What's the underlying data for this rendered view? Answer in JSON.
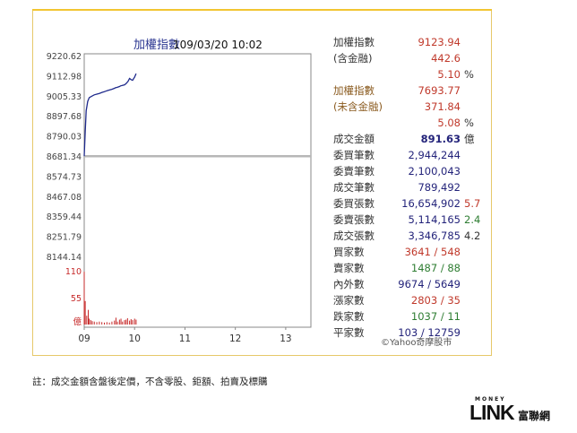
{
  "chart_data": {
    "type": "line",
    "title": "加權指數",
    "datetime": "109/03/20 10:02",
    "y_ticks": [
      "9220.62",
      "9112.98",
      "9005.33",
      "8897.68",
      "8790.03",
      "8681.34",
      "8574.73",
      "8467.08",
      "8359.44",
      "8251.79",
      "8144.14"
    ],
    "ylim": [
      8144.14,
      9220.62
    ],
    "reference": 8681.34,
    "x_ticks": [
      "09",
      "10",
      "11",
      "12",
      "13"
    ],
    "series": [
      {
        "name": "加權指數",
        "x": [
          9.0,
          9.02,
          9.04,
          9.07,
          9.1,
          9.15,
          9.2,
          9.25,
          9.3,
          9.35,
          9.4,
          9.45,
          9.5,
          9.55,
          9.6,
          9.62,
          9.65,
          9.7,
          9.72,
          9.75,
          9.8,
          9.83,
          9.87,
          9.9,
          9.93,
          9.96,
          10.0,
          10.03
        ],
        "values": [
          8681.34,
          8810,
          8925,
          8975,
          8995,
          9003,
          9010,
          9014,
          9018,
          9023,
          9027,
          9032,
          9036,
          9040,
          9045,
          9048,
          9050,
          9055,
          9058,
          9060,
          9064,
          9070,
          9082,
          9098,
          9092,
          9088,
          9105,
          9123.94
        ]
      }
    ],
    "volume": {
      "unit": "億",
      "ticks": [
        "110",
        "55"
      ],
      "ymax": 110,
      "x": [
        9.0,
        9.02,
        9.05,
        9.08,
        9.1,
        9.13,
        9.16,
        9.2,
        9.25,
        9.3,
        9.35,
        9.4,
        9.45,
        9.5,
        9.55,
        9.6,
        9.63,
        9.66,
        9.7,
        9.73,
        9.76,
        9.8,
        9.83,
        9.86,
        9.9,
        9.93,
        9.96,
        10.0,
        10.03
      ],
      "values": [
        108,
        48,
        18,
        30,
        12,
        9,
        7,
        6,
        5,
        6,
        5,
        4,
        5,
        4,
        6,
        8,
        14,
        6,
        10,
        12,
        6,
        9,
        10,
        13,
        8,
        11,
        9,
        12,
        10
      ]
    }
  },
  "stats": [
    {
      "label": "加權指數",
      "value": "9123.94",
      "extra": "",
      "label_color": "#333333",
      "value_color": "#c0392b"
    },
    {
      "label": "(含金融)",
      "value": "442.6",
      "extra": "",
      "label_color": "#333333",
      "value_color": "#c0392b"
    },
    {
      "label": "",
      "value": "5.10",
      "extra": "%",
      "label_color": "#333333",
      "value_color": "#c0392b"
    },
    {
      "label": "加權指數",
      "value": "7693.77",
      "extra": "",
      "label_color": "#8a5a1e",
      "value_color": "#c0392b"
    },
    {
      "label": "(未含金融)",
      "value": "371.84",
      "extra": "",
      "label_color": "#8a5a1e",
      "value_color": "#c0392b"
    },
    {
      "label": "",
      "value": "5.08",
      "extra": "%",
      "label_color": "#333333",
      "value_color": "#c0392b"
    },
    {
      "label": "成交金額",
      "value": "891.63",
      "extra": "億",
      "label_color": "#333333",
      "value_color": "#23237a"
    },
    {
      "label": "委買筆數",
      "value": "2,944,244",
      "extra": "",
      "label_color": "#333333",
      "value_color": "#23237a"
    },
    {
      "label": "委賣筆數",
      "value": "2,100,043",
      "extra": "",
      "label_color": "#333333",
      "value_color": "#23237a"
    },
    {
      "label": "成交筆數",
      "value": "789,492",
      "extra": "",
      "label_color": "#333333",
      "value_color": "#23237a"
    },
    {
      "label": "委買張數",
      "value": "16,654,902",
      "extra": "5.7",
      "label_color": "#333333",
      "value_color": "#23237a",
      "extra_color": "#c0392b"
    },
    {
      "label": "委賣張數",
      "value": "5,114,165",
      "extra": "2.4",
      "label_color": "#333333",
      "value_color": "#23237a",
      "extra_color": "#2e7d32"
    },
    {
      "label": "成交張數",
      "value": "3,346,785",
      "extra": "4.2",
      "label_color": "#333333",
      "value_color": "#23237a",
      "extra_color": "#333333"
    },
    {
      "label": "買家數",
      "value": "3641 / 548",
      "extra": "",
      "label_color": "#333333",
      "value_color": "#c0392b"
    },
    {
      "label": "賣家數",
      "value": "1487 / 88",
      "extra": "",
      "label_color": "#333333",
      "value_color": "#2e7d32"
    },
    {
      "label": "內外數",
      "value": "9674 / 5649",
      "extra": "",
      "label_color": "#333333",
      "value_color": "#23237a"
    },
    {
      "label": "漲家數",
      "value": "2803 / 35",
      "extra": "",
      "label_color": "#333333",
      "value_color": "#c0392b"
    },
    {
      "label": "跌家數",
      "value": "1037 / 11",
      "extra": "",
      "label_color": "#333333",
      "value_color": "#2e7d32"
    },
    {
      "label": "平家數",
      "value": "103 / 12759",
      "extra": "",
      "label_color": "#333333",
      "value_color": "#23237a"
    }
  ],
  "credit": "©Yahoo奇摩股市",
  "note": "註：成交金額含盤後定價，不含零股、鉅額、拍賣及標購",
  "logo": {
    "top": "MONEY",
    "main": "LINK",
    "cn": "富聯網"
  },
  "colors": {
    "line": "#1f2a8c",
    "reference": "#b7b7b7",
    "volume": "#c62828",
    "panel_border": "#e6c86a",
    "accent": "#f2c531"
  }
}
